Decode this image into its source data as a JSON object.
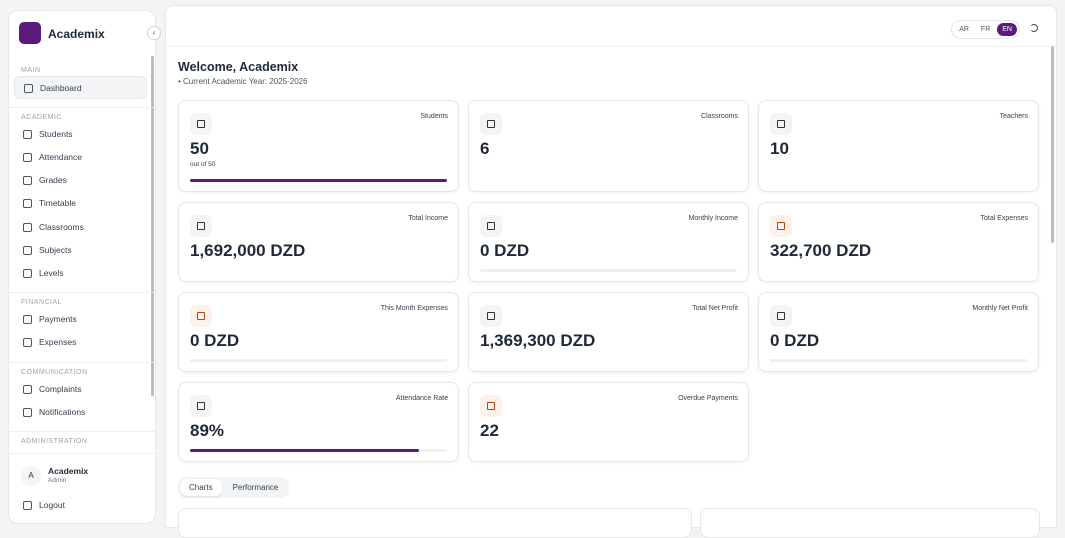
{
  "sidebar": {
    "brand": "Academix",
    "sections": [
      {
        "label": "MAIN",
        "items": [
          "Dashboard"
        ]
      },
      {
        "label": "ACADEMIC",
        "items": [
          "Students",
          "Attendance",
          "Grades",
          "Timetable",
          "Classrooms",
          "Subjects",
          "Levels"
        ]
      },
      {
        "label": "FINANCIAL",
        "items": [
          "Payments",
          "Expenses"
        ]
      },
      {
        "label": "COMMUNICATION",
        "items": [
          "Complaints",
          "Notifications"
        ]
      },
      {
        "label": "ADMINISTRATION",
        "items": []
      }
    ],
    "user": {
      "initial": "A",
      "name": "Academix",
      "role": "Admin"
    },
    "logout": "Logout"
  },
  "topbar": {
    "languages": [
      "AR",
      "FR",
      "EN"
    ]
  },
  "header": {
    "title": "Welcome, Academix",
    "subtitle": "Current Academic Year: 2025-2026"
  },
  "cards": [
    {
      "label": "Students",
      "value": "50",
      "note": "out of 50"
    },
    {
      "label": "Classrooms",
      "value": "6"
    },
    {
      "label": "Teachers",
      "value": "10"
    },
    {
      "label": "Total Income",
      "value": "1,692,000 DZD"
    },
    {
      "label": "Monthly Income",
      "value": "0 DZD"
    },
    {
      "label": "Total Expenses",
      "value": "322,700 DZD"
    },
    {
      "label": "This Month Expenses",
      "value": "0 DZD"
    },
    {
      "label": "Total Net Profit",
      "value": "1,369,300 DZD"
    },
    {
      "label": "Monthly Net Profit",
      "value": "0 DZD"
    },
    {
      "label": "Attendance Rate",
      "value": "89%"
    },
    {
      "label": "Overdue Payments",
      "value": "22"
    }
  ],
  "tabs": [
    "Charts",
    "Performance"
  ]
}
